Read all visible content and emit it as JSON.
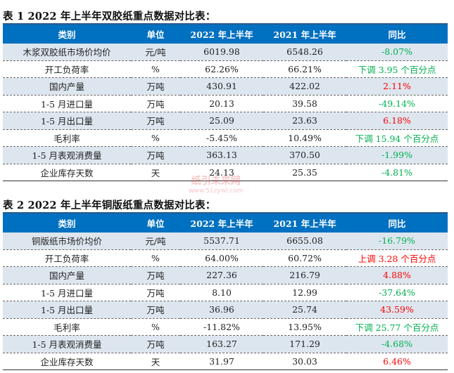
{
  "table1": {
    "caption": "表 1 2022 年上半年双胶纸重点数据对比表：",
    "headers": [
      "类别",
      "单位",
      "2022 年上半年",
      "2021 年上半年",
      "同比"
    ],
    "rows": [
      {
        "cells": [
          "木浆双胶纸市场价均价",
          "元/吨",
          "6019.98",
          "6548.26",
          "-8.07%"
        ],
        "trend": "down"
      },
      {
        "cells": [
          "开工负荷率",
          "%",
          "62.26%",
          "66.21%",
          "下调 3.95 个百分点"
        ],
        "trend": "down"
      },
      {
        "cells": [
          "国内产量",
          "万吨",
          "430.91",
          "422.02",
          "2.11%"
        ],
        "trend": "up"
      },
      {
        "cells": [
          "1-5 月进口量",
          "万吨",
          "20.13",
          "39.58",
          "-49.14%"
        ],
        "trend": "down"
      },
      {
        "cells": [
          "1-5 月出口量",
          "万吨",
          "25.09",
          "23.63",
          "6.18%"
        ],
        "trend": "up"
      },
      {
        "cells": [
          "毛利率",
          "%",
          "-5.45%",
          "10.49%",
          "下调 15.94 个百分点"
        ],
        "trend": "down"
      },
      {
        "cells": [
          "1-5 月表观消费量",
          "万吨",
          "363.13",
          "370.50",
          "-1.99%"
        ],
        "trend": "down"
      },
      {
        "cells": [
          "企业库存天数",
          "天",
          "24.13",
          "25.35",
          "-4.81%"
        ],
        "trend": "down"
      }
    ]
  },
  "table2": {
    "caption": "表 2 2022 年上半年铜版纸重点数据对比表：",
    "headers": [
      "类别",
      "单位",
      "2022 年上半年",
      "2021 年上半年",
      "同比"
    ],
    "rows": [
      {
        "cells": [
          "铜版纸市场价均价",
          "元/吨",
          "5537.71",
          "6655.08",
          "-16.79%"
        ],
        "trend": "down"
      },
      {
        "cells": [
          "开工负荷率",
          "%",
          "64.00%",
          "60.72%",
          "上调 3.28 个百分点"
        ],
        "trend": "up"
      },
      {
        "cells": [
          "国内产量",
          "万吨",
          "227.36",
          "216.79",
          "4.88%"
        ],
        "trend": "up"
      },
      {
        "cells": [
          "1-5 月进口量",
          "万吨",
          "8.10",
          "12.99",
          "-37.64%"
        ],
        "trend": "down"
      },
      {
        "cells": [
          "1-5 月出口量",
          "万吨",
          "36.96",
          "25.74",
          "43.59%"
        ],
        "trend": "up"
      },
      {
        "cells": [
          "毛利率",
          "%",
          "-11.82%",
          "13.95%",
          "下调 25.77 个百分点"
        ],
        "trend": "down"
      },
      {
        "cells": [
          "1-5 月表观消费量",
          "万吨",
          "163.27",
          "171.29",
          "-4.68%"
        ],
        "trend": "down"
      },
      {
        "cells": [
          "企业库存天数",
          "天",
          "31.97",
          "30.03",
          "6.46%"
        ],
        "trend": "up"
      }
    ]
  },
  "watermark": {
    "name": "纸引未来网",
    "url": "www.51zywl.com"
  },
  "colors": {
    "header": "#0070c0",
    "shade": "#dde6ef",
    "up": "#ff0000",
    "down": "#00b050"
  }
}
